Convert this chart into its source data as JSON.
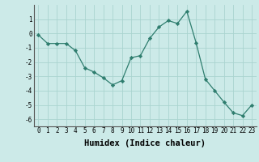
{
  "x": [
    0,
    1,
    2,
    3,
    4,
    5,
    6,
    7,
    8,
    9,
    10,
    11,
    12,
    13,
    14,
    15,
    16,
    17,
    18,
    19,
    20,
    21,
    22,
    23
  ],
  "y": [
    -0.1,
    -0.7,
    -0.7,
    -0.7,
    -1.2,
    -2.4,
    -2.7,
    -3.1,
    -3.6,
    -3.3,
    -1.7,
    -1.55,
    -0.35,
    0.45,
    0.9,
    0.7,
    1.55,
    -0.65,
    -3.2,
    -4.0,
    -4.8,
    -5.55,
    -5.75,
    -5.0
  ],
  "line_color": "#2e7d6e",
  "marker": "D",
  "marker_size": 2.2,
  "bg_color": "#cceae8",
  "grid_color": "#aad4d0",
  "xlabel": "Humidex (Indice chaleur)",
  "ylim": [
    -6.5,
    2.0
  ],
  "xlim": [
    -0.5,
    23.5
  ],
  "yticks": [
    1,
    0,
    -1,
    -2,
    -3,
    -4,
    -5,
    -6
  ],
  "xticks": [
    0,
    1,
    2,
    3,
    4,
    5,
    6,
    7,
    8,
    9,
    10,
    11,
    12,
    13,
    14,
    15,
    16,
    17,
    18,
    19,
    20,
    21,
    22,
    23
  ],
  "tick_label_fontsize": 5.5,
  "xlabel_fontsize": 7.5
}
